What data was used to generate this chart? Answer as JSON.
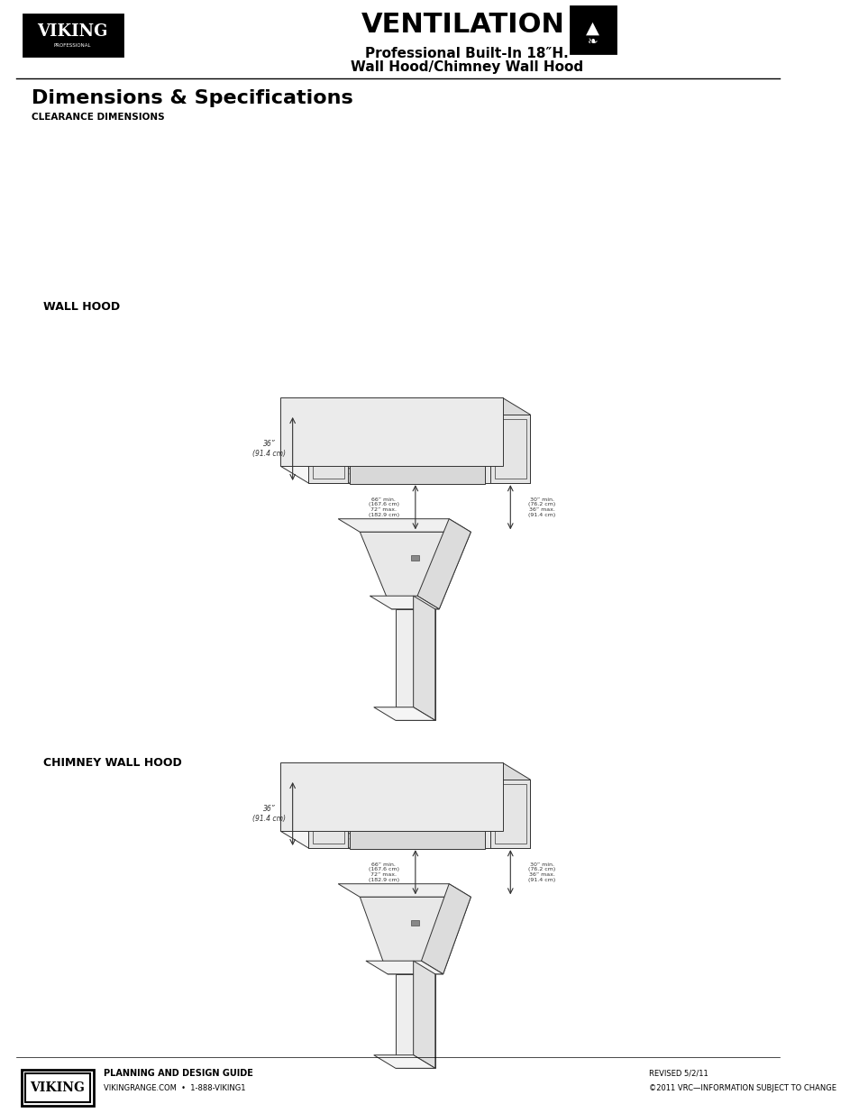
{
  "title": "VENTILATION",
  "subtitle1": "Professional Built-In 18″H.",
  "subtitle2": "Wall Hood/Chimney Wall Hood",
  "section_title": "Dimensions & Specifications",
  "clearance_label": "CLEARANCE DIMENSIONS",
  "wall_hood_label": "WALL HOOD",
  "chimney_hood_label": "CHIMNEY WALL HOOD",
  "dim1_label": "66” min.\n(167.6 cm)\n72” max.\n(182.9 cm)",
  "dim2_label": "30” min.\n(76.2 cm)\n36” max.\n(91.4 cm)",
  "dim3_label": "36”\n(91.4 cm)",
  "footer_logo_text": "VIKING",
  "footer_guide": "PLANNING AND DESIGN GUIDE",
  "footer_web": "VIKINGRANGE.COM  •  1-888-VIKING1",
  "footer_revised": "REVISED 5/2/11",
  "footer_copyright": "©2011 VRC—INFORMATION SUBJECT TO CHANGE",
  "bg_color": "#ffffff",
  "text_color": "#000000",
  "line_color": "#333333"
}
